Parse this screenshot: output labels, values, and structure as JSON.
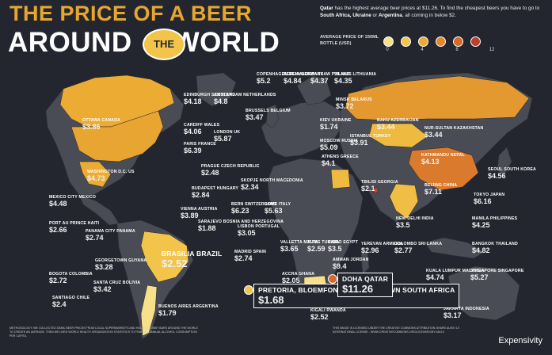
{
  "header": {
    "title_line1": "THE PRICE OF A BEER",
    "title_line2_a": "AROUND",
    "title_badge": "THE",
    "title_line2_b": "WORLD"
  },
  "intro": {
    "part1": "Qatar",
    "part2": " has the highest average beer prices at $11.26. To find the cheapest beers you have to go to ",
    "part3": "South Africa, Ukraine",
    "part4": " or ",
    "part5": "Argentina",
    "part6": ", all coming in below $2."
  },
  "legend": {
    "title": "AVERAGE PRICE OF 330ML BOTTLE (USD)",
    "ticks": [
      "0",
      "4",
      "8",
      "12"
    ],
    "colors": [
      "#f7e08a",
      "#f3c54e",
      "#ecab33",
      "#e2872c",
      "#d66a2a",
      "#b9432a"
    ]
  },
  "countries": [
    {
      "name": "OTTAWA CANADA",
      "price": "$3.86"
    },
    {
      "name": "WASHINGTON D.C. US",
      "price": "$4.73"
    },
    {
      "name": "MEXICO CITY MEXICO",
      "price": "$4.48"
    },
    {
      "name": "PORT AU PRINCE HAITI",
      "price": "$2.66"
    },
    {
      "name": "PANAMA CITY PANAMA",
      "price": "$2.74"
    },
    {
      "name": "GEORGETOWN GUYANA",
      "price": "$3.28"
    },
    {
      "name": "BOGOTA COLOMBIA",
      "price": "$2.72"
    },
    {
      "name": "SANTA CRUZ BOLIVIA",
      "price": "$3.42"
    },
    {
      "name": "SANTIAGO CHILE",
      "price": "$2.4"
    },
    {
      "name": "BRASILIA BRAZIL",
      "price": "$2.52"
    },
    {
      "name": "BUENOS AIRES ARGENTINA",
      "price": "$1.79"
    },
    {
      "name": "EDINBURGH SCOTLAND",
      "price": "$4.18"
    },
    {
      "name": "AMSTERDAM NETHERLANDS",
      "price": "$4.8"
    },
    {
      "name": "CARDIFF WALES",
      "price": "$4.06"
    },
    {
      "name": "LONDON UK",
      "price": "$5.87"
    },
    {
      "name": "BRUSSELS BELGIUM",
      "price": "$3.47"
    },
    {
      "name": "PARIS FRANCE",
      "price": "$6.39"
    },
    {
      "name": "COPENHAGEN DENMARK",
      "price": "$5.2"
    },
    {
      "name": "BERLIN GERMANY",
      "price": "$4.84"
    },
    {
      "name": "WARSAW POLAND",
      "price": "$4.37"
    },
    {
      "name": "VILNIUS LITHUANIA",
      "price": "$4.35"
    },
    {
      "name": "MINSK BELARUS",
      "price": "$3.72"
    },
    {
      "name": "KIEV UKRAINE",
      "price": "$1.74"
    },
    {
      "name": "MOSCOW RUSSIA",
      "price": "$5.09"
    },
    {
      "name": "PRAGUE CZECH REPUBLIC",
      "price": "$2.48"
    },
    {
      "name": "BUDAPEST HUNGARY",
      "price": "$2.84"
    },
    {
      "name": "VIENNA AUSTRIA",
      "price": "$3.89"
    },
    {
      "name": "SKOPJE NORTH MACEDONIA",
      "price": "$2.34"
    },
    {
      "name": "SARAJEVO BOSNIA AND HERZEGOVINA",
      "price": "$1.88"
    },
    {
      "name": "BERN SWITZERLAND",
      "price": "$6.23"
    },
    {
      "name": "LISBON PORTUGAL",
      "price": "$3.05"
    },
    {
      "name": "MADRID SPAIN",
      "price": "$2.74"
    },
    {
      "name": "ROME ITALY",
      "price": "$5.63"
    },
    {
      "name": "ATHENS GREECE",
      "price": "$4.1"
    },
    {
      "name": "ISTANBUL TURKEY",
      "price": "$3.91"
    },
    {
      "name": "VALLETTA MALTA",
      "price": "$3.65"
    },
    {
      "name": "TUNIS TUNISIA",
      "price": "$2.59"
    },
    {
      "name": "CAIRO EGYPT",
      "price": "$3.5"
    },
    {
      "name": "AMMAN JORDAN",
      "price": "$9.4"
    },
    {
      "name": "ACCRA GHANA",
      "price": "$2.05"
    },
    {
      "name": "TBILISI GEORGIA",
      "price": "$2.1"
    },
    {
      "name": "YEREVAN ARMENIA",
      "price": "$2.96"
    },
    {
      "name": "BAKU AZERBAIJAN",
      "price": "$3.44"
    },
    {
      "name": "NUR-SULTAN KAZAKHSTAN",
      "price": "$3.44"
    },
    {
      "name": "KATHMANDU NEPAL",
      "price": "$4.13"
    },
    {
      "name": "NEW DELHI INDIA",
      "price": "$3.5"
    },
    {
      "name": "COLOMBO SRI LANKA",
      "price": "$2.77"
    },
    {
      "name": "BEIJING CHINA",
      "price": "$7.11"
    },
    {
      "name": "SEOUL SOUTH KOREA",
      "price": "$4.56"
    },
    {
      "name": "TOKYO JAPAN",
      "price": "$6.16"
    },
    {
      "name": "MANILA PHILIPPINES",
      "price": "$4.25"
    },
    {
      "name": "BANGKOK THAILAND",
      "price": "$4.82"
    },
    {
      "name": "SINGAPORE SINGAPORE",
      "price": "$5.27"
    },
    {
      "name": "KUALA LUMPUR MALAYSIA",
      "price": "$4.74"
    },
    {
      "name": "JAKARTA INDONESIA",
      "price": "$3.17"
    },
    {
      "name": "KIGALI RWANDA",
      "price": "$2.52"
    },
    {
      "name": "PRETORIA, BLOEMFONTEIN, CAPE TOWN SOUTH AFRICA",
      "price": "$1.68"
    },
    {
      "name": "DOHA QATAR",
      "price": "$11.26"
    }
  ],
  "footer": {
    "methodology": "METHODOLOGY: WE COLLECTED 330ML BEER PRICES FROM LOCAL SUPERMARKETS AND HOLIDAY LOBBY BARS AROUND THE WORLD TO CREATE AN AVERAGE. THEN WE USED WORLD HEALTH ORGANIZATION STATISTICS TO FIND OUT ANNUAL ALCOHOL CONSUMPTION PER CAPITA.",
    "license": "THIS IMAGE IS LICENSED UNDER THE CREATIVE COMMONS ATTRIBUTION-SHARE ALIKE 4.0 INTERNATIONAL LICENSE - WWW.CREATIVECOMMONS.ORG/LICENSES/BY-SA/4.0",
    "brand": "Expensivity"
  }
}
